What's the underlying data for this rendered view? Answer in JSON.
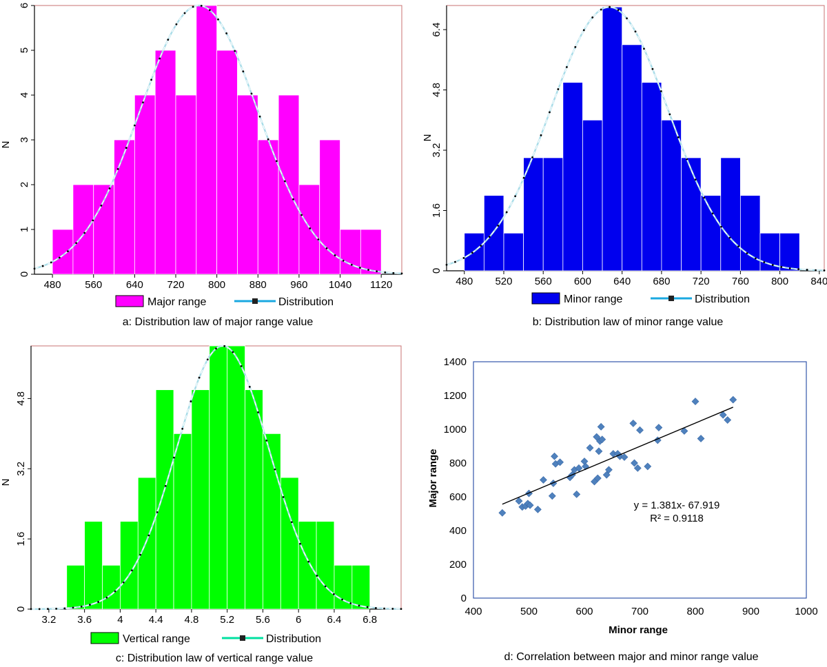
{
  "colors": {
    "panel_a_bar": "#ff00ff",
    "panel_b_bar": "#0000ee",
    "panel_c_bar": "#00ff00",
    "frame_hist": "#c87070",
    "frame_scatter": "#3355aa",
    "curve_light": "#a8dce8",
    "curve_dots": "#000000",
    "legend_line_a": "#1aa8e0",
    "legend_line_c": "#00e0a0",
    "scatter_marker": "#4f81bd",
    "trendline": "#000000"
  },
  "chart_data": [
    {
      "id": "a",
      "type": "bar",
      "title": "a: Distribution law of major range value",
      "xlabel": "",
      "ylabel": "N",
      "xlim": [
        445,
        1160
      ],
      "ylim": [
        0,
        6
      ],
      "xticks": [
        "480",
        "560",
        "640",
        "720",
        "800",
        "880",
        "960",
        "1040",
        "1120"
      ],
      "xtick_values": [
        480,
        560,
        640,
        720,
        800,
        880,
        960,
        1040,
        1120
      ],
      "yticks": [
        "0",
        "1",
        "2",
        "3",
        "4",
        "5",
        "6"
      ],
      "ytick_values": [
        0,
        1,
        2,
        3,
        4,
        5,
        6
      ],
      "bin_edges": [
        480,
        520,
        560,
        600,
        640,
        680,
        720,
        760,
        800,
        840,
        880,
        920,
        960,
        1000,
        1040,
        1080,
        1120
      ],
      "values": [
        1,
        2,
        2,
        3,
        4,
        5,
        4,
        6,
        5,
        4,
        3,
        4,
        2,
        3,
        1,
        1
      ],
      "distribution": {
        "mean": 765,
        "sd": 115,
        "peak": 6
      },
      "legend": {
        "series": "Major range",
        "curve": "Distribution"
      }
    },
    {
      "id": "b",
      "type": "bar",
      "title": "b: Distribution law of minor range value",
      "xlabel": "",
      "ylabel": "N",
      "xlim": [
        462,
        845
      ],
      "ylim": [
        0,
        7.04
      ],
      "xticks": [
        "480",
        "520",
        "560",
        "600",
        "640",
        "680",
        "720",
        "760",
        "800",
        "840"
      ],
      "xtick_values": [
        480,
        520,
        560,
        600,
        640,
        680,
        720,
        760,
        800,
        840
      ],
      "yticks": [
        "0",
        "1.6",
        "3.2",
        "4.8",
        "6.4"
      ],
      "ytick_values": [
        0,
        1.6,
        3.2,
        4.8,
        6.4
      ],
      "bin_edges": [
        480,
        500,
        520,
        540,
        560,
        580,
        600,
        620,
        640,
        660,
        680,
        700,
        720,
        740,
        760,
        780,
        800,
        820
      ],
      "values": [
        1,
        2,
        1,
        3,
        3,
        5,
        4,
        7,
        6,
        5,
        4,
        3,
        2,
        3,
        2,
        1,
        1
      ],
      "distribution": {
        "mean": 627,
        "sd": 60,
        "peak": 7
      },
      "legend": {
        "series": "Minor range",
        "curve": "Distribution"
      }
    },
    {
      "id": "c",
      "type": "bar",
      "title": "c: Distribution law of vertical range value",
      "xlabel": "",
      "ylabel": "N",
      "xlim": [
        3.0,
        7.15
      ],
      "ylim": [
        0,
        6.0
      ],
      "xticks": [
        "3.2",
        "3.6",
        "4",
        "4.4",
        "4.8",
        "5.2",
        "5.6",
        "6",
        "6.4",
        "6.8"
      ],
      "xtick_values": [
        3.2,
        3.6,
        4.0,
        4.4,
        4.8,
        5.2,
        5.6,
        6.0,
        6.4,
        6.8
      ],
      "yticks": [
        "0",
        "1.6",
        "3.2",
        "4.8"
      ],
      "ytick_values": [
        0,
        1.6,
        3.2,
        4.8
      ],
      "bin_edges": [
        3.4,
        3.6,
        3.8,
        4.0,
        4.2,
        4.4,
        4.6,
        4.8,
        5.0,
        5.2,
        5.4,
        5.6,
        5.8,
        6.0,
        6.2,
        6.4,
        6.6,
        6.8
      ],
      "values": [
        1,
        2,
        1,
        2,
        3,
        5,
        4,
        5,
        6,
        6,
        5,
        4,
        3,
        2,
        2,
        1,
        1
      ],
      "distribution": {
        "mean": 5.15,
        "sd": 0.52,
        "peak": 6
      },
      "legend": {
        "series": "Vertical range",
        "curve": "Distribution"
      }
    },
    {
      "id": "d",
      "type": "scatter",
      "title": "d: Correlation between major and minor range value",
      "xlabel": "Minor range",
      "ylabel": "Major range",
      "xlim": [
        400,
        1000
      ],
      "ylim": [
        0,
        1400
      ],
      "xticks": [
        "400",
        "500",
        "600",
        "700",
        "800",
        "900",
        "1000"
      ],
      "xtick_values": [
        400,
        500,
        600,
        700,
        800,
        900,
        1000
      ],
      "yticks": [
        "0",
        "200",
        "400",
        "600",
        "800",
        "1000",
        "1200",
        "1400"
      ],
      "ytick_values": [
        0,
        200,
        400,
        600,
        800,
        1000,
        1200,
        1400
      ],
      "points": [
        [
          452,
          505
        ],
        [
          482,
          575
        ],
        [
          488,
          540
        ],
        [
          494,
          545
        ],
        [
          498,
          560
        ],
        [
          500,
          620
        ],
        [
          502,
          550
        ],
        [
          516,
          525
        ],
        [
          526,
          700
        ],
        [
          542,
          605
        ],
        [
          544,
          680
        ],
        [
          546,
          840
        ],
        [
          548,
          795
        ],
        [
          556,
          805
        ],
        [
          574,
          715
        ],
        [
          578,
          730
        ],
        [
          582,
          760
        ],
        [
          586,
          615
        ],
        [
          590,
          770
        ],
        [
          600,
          810
        ],
        [
          602,
          780
        ],
        [
          610,
          890
        ],
        [
          618,
          690
        ],
        [
          622,
          955
        ],
        [
          624,
          710
        ],
        [
          626,
          870
        ],
        [
          628,
          930
        ],
        [
          630,
          1015
        ],
        [
          632,
          940
        ],
        [
          640,
          730
        ],
        [
          644,
          760
        ],
        [
          652,
          855
        ],
        [
          660,
          855
        ],
        [
          664,
          840
        ],
        [
          672,
          835
        ],
        [
          688,
          1035
        ],
        [
          690,
          800
        ],
        [
          696,
          770
        ],
        [
          700,
          995
        ],
        [
          714,
          780
        ],
        [
          732,
          935
        ],
        [
          734,
          1010
        ],
        [
          780,
          990
        ],
        [
          800,
          1165
        ],
        [
          810,
          945
        ],
        [
          850,
          1085
        ],
        [
          858,
          1055
        ],
        [
          868,
          1175
        ]
      ],
      "trendline": {
        "slope": 1.381,
        "intercept": -67.919,
        "x_from": 452,
        "x_to": 868
      },
      "equation": "y = 1.381x- 67.919",
      "r2": "R² = 0.9118"
    }
  ]
}
